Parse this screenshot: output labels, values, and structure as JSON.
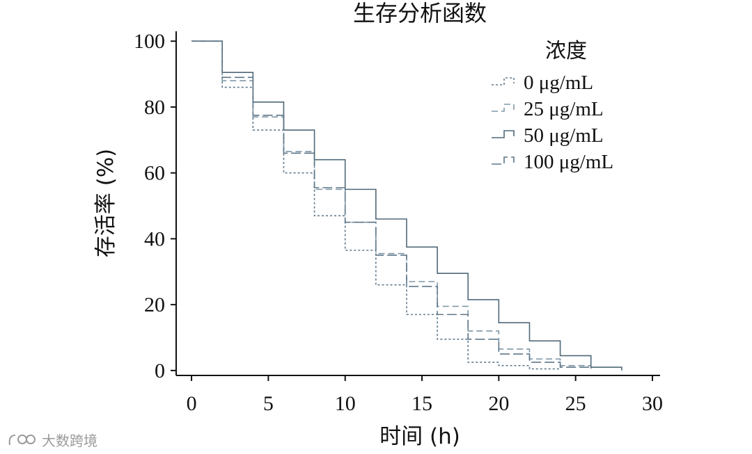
{
  "chart_data": {
    "type": "line",
    "step": true,
    "title": "生存分析函数",
    "xlabel": "时间 (h)",
    "ylabel": "存活率 (%)",
    "xlim": [
      -1,
      30.5
    ],
    "ylim": [
      -1.5,
      103
    ],
    "xticks": [
      0,
      5,
      10,
      15,
      20,
      25,
      30
    ],
    "yticks": [
      0,
      20,
      40,
      60,
      80,
      100
    ],
    "grid": false,
    "legend": {
      "title": "浓度",
      "position": "top-right"
    },
    "series": [
      {
        "name": "0 μg/mL",
        "dash": "3,3",
        "color": "#5f7a8e",
        "points": [
          [
            0,
            100
          ],
          [
            2,
            86
          ],
          [
            4,
            73
          ],
          [
            6,
            60
          ],
          [
            8,
            47
          ],
          [
            10,
            36.5
          ],
          [
            12,
            26
          ],
          [
            14,
            17
          ],
          [
            16,
            9.5
          ],
          [
            18,
            2.5
          ],
          [
            20,
            1.5
          ],
          [
            22,
            0.5
          ],
          [
            24,
            0.5
          ]
        ]
      },
      {
        "name": "25 μg/mL",
        "dash": "9,5",
        "color": "#7f97a8",
        "points": [
          [
            0,
            100
          ],
          [
            2,
            88
          ],
          [
            4,
            77
          ],
          [
            6,
            66.5
          ],
          [
            8,
            55
          ],
          [
            10,
            45
          ],
          [
            12,
            35.5
          ],
          [
            14,
            27
          ],
          [
            16,
            19.5
          ],
          [
            18,
            12
          ],
          [
            20,
            6.5
          ],
          [
            22,
            3.5
          ],
          [
            24,
            1.5
          ],
          [
            26,
            0.5
          ]
        ]
      },
      {
        "name": "50 μg/mL",
        "dash": "",
        "color": "#4f6878",
        "points": [
          [
            0,
            100
          ],
          [
            2,
            90.5
          ],
          [
            4,
            81.5
          ],
          [
            6,
            73
          ],
          [
            8,
            64
          ],
          [
            10,
            55
          ],
          [
            12,
            46
          ],
          [
            14,
            37.5
          ],
          [
            16,
            29.5
          ],
          [
            18,
            21.5
          ],
          [
            20,
            14.5
          ],
          [
            22,
            9
          ],
          [
            24,
            4.5
          ],
          [
            26,
            1
          ],
          [
            28,
            0
          ]
        ]
      },
      {
        "name": "100 μg/mL",
        "dash": "14,5",
        "color": "#5d7688",
        "points": [
          [
            0,
            100
          ],
          [
            2,
            89
          ],
          [
            4,
            77.5
          ],
          [
            6,
            66
          ],
          [
            8,
            55.5
          ],
          [
            10,
            45
          ],
          [
            12,
            35
          ],
          [
            14,
            25.5
          ],
          [
            16,
            17
          ],
          [
            18,
            9.5
          ],
          [
            20,
            5
          ],
          [
            22,
            2.5
          ],
          [
            24,
            1
          ],
          [
            26,
            0.5
          ]
        ]
      }
    ]
  },
  "watermark": {
    "text": "大数跨境"
  }
}
